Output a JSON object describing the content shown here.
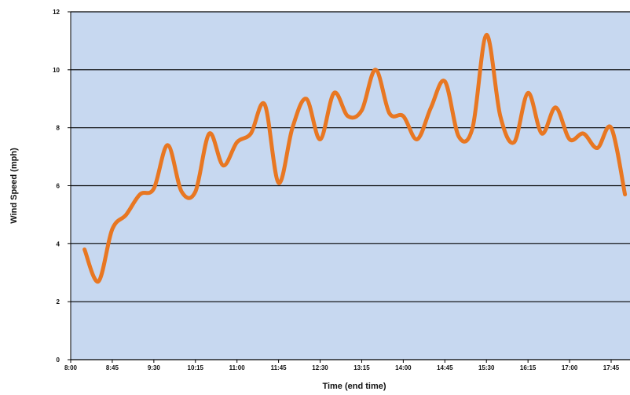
{
  "chart_data": {
    "type": "line",
    "title": "",
    "xlabel": "Time (end time)",
    "ylabel": "Wind Speed (mph)",
    "ylim": [
      0,
      12
    ],
    "yticks": [
      "0",
      "2",
      "4",
      "6",
      "8",
      "10",
      "12"
    ],
    "xticks": [
      "8:00",
      "8:45",
      "9:30",
      "10:15",
      "11:00",
      "11:45",
      "12:30",
      "13:15",
      "14:00",
      "14:45",
      "15:30",
      "16:15",
      "17:00",
      "17:45"
    ],
    "grid": true,
    "legend": "none",
    "x": [
      "8:15",
      "8:30",
      "8:45",
      "9:00",
      "9:15",
      "9:30",
      "9:45",
      "10:00",
      "10:15",
      "10:30",
      "10:45",
      "11:00",
      "11:15",
      "11:30",
      "11:45",
      "12:00",
      "12:15",
      "12:30",
      "12:45",
      "13:00",
      "13:15",
      "13:30",
      "13:45",
      "14:00",
      "14:15",
      "14:30",
      "14:45",
      "15:00",
      "15:15",
      "15:30",
      "15:45",
      "16:00",
      "16:15",
      "16:30",
      "16:45",
      "17:00",
      "17:15",
      "17:30",
      "17:45",
      "18:00"
    ],
    "series": [
      {
        "values": [
          3.8,
          2.7,
          4.5,
          5.0,
          5.7,
          5.9,
          7.4,
          5.8,
          5.8,
          7.8,
          6.7,
          7.5,
          7.8,
          8.8,
          6.1,
          8.0,
          9.0,
          7.6,
          9.2,
          8.4,
          8.6,
          10.0,
          8.5,
          8.4,
          7.6,
          8.7,
          9.6,
          7.7,
          8.0,
          11.2,
          8.4,
          7.5,
          9.2,
          7.8,
          8.7,
          7.6,
          7.8,
          7.3,
          8.0,
          5.7
        ]
      }
    ],
    "colors": {
      "plot_background": "#c7d8f0",
      "line": "#e87722",
      "gridline": "#000000"
    }
  }
}
